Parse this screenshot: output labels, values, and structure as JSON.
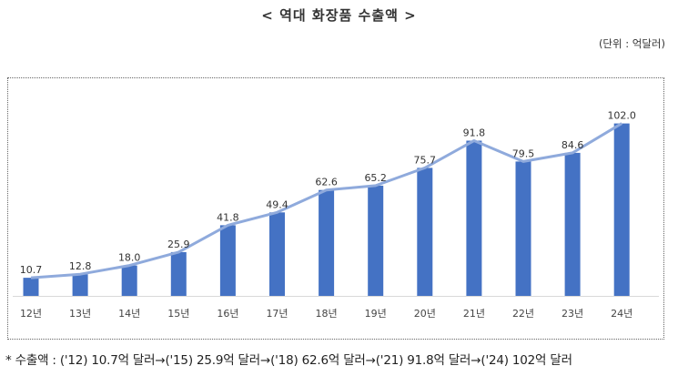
{
  "title": "< 역대 화장품 수출액 >",
  "unit": "(단위 : 억달러)",
  "note": "* 수출액 : ('12) 10.7억 달러→('15) 25.9억 달러→('18) 62.6억 달러→('21) 91.8억 달러→('24) 102억 달러",
  "colors": {
    "bar": "#4472c4",
    "line": "#8faadc",
    "axis": "#d9d9d9"
  },
  "chart_data": {
    "type": "bar",
    "categories": [
      "12년",
      "13년",
      "14년",
      "15년",
      "16년",
      "17년",
      "18년",
      "19년",
      "20년",
      "21년",
      "22년",
      "23년",
      "24년"
    ],
    "values": [
      10.7,
      12.8,
      18.0,
      25.9,
      41.8,
      49.4,
      62.6,
      65.2,
      75.7,
      91.8,
      79.5,
      84.6,
      102.0
    ],
    "labels": [
      "10.7",
      "12.8",
      "18.0",
      "25.9",
      "41.8",
      "49.4",
      "62.6",
      "65.2",
      "75.7",
      "91.8",
      "79.5",
      "84.6",
      "102.0"
    ],
    "overlay": "line",
    "title": "< 역대 화장품 수출액 >",
    "ylabel": "(단위 : 억달러)",
    "ylim": [
      0,
      112
    ],
    "grid": false
  }
}
